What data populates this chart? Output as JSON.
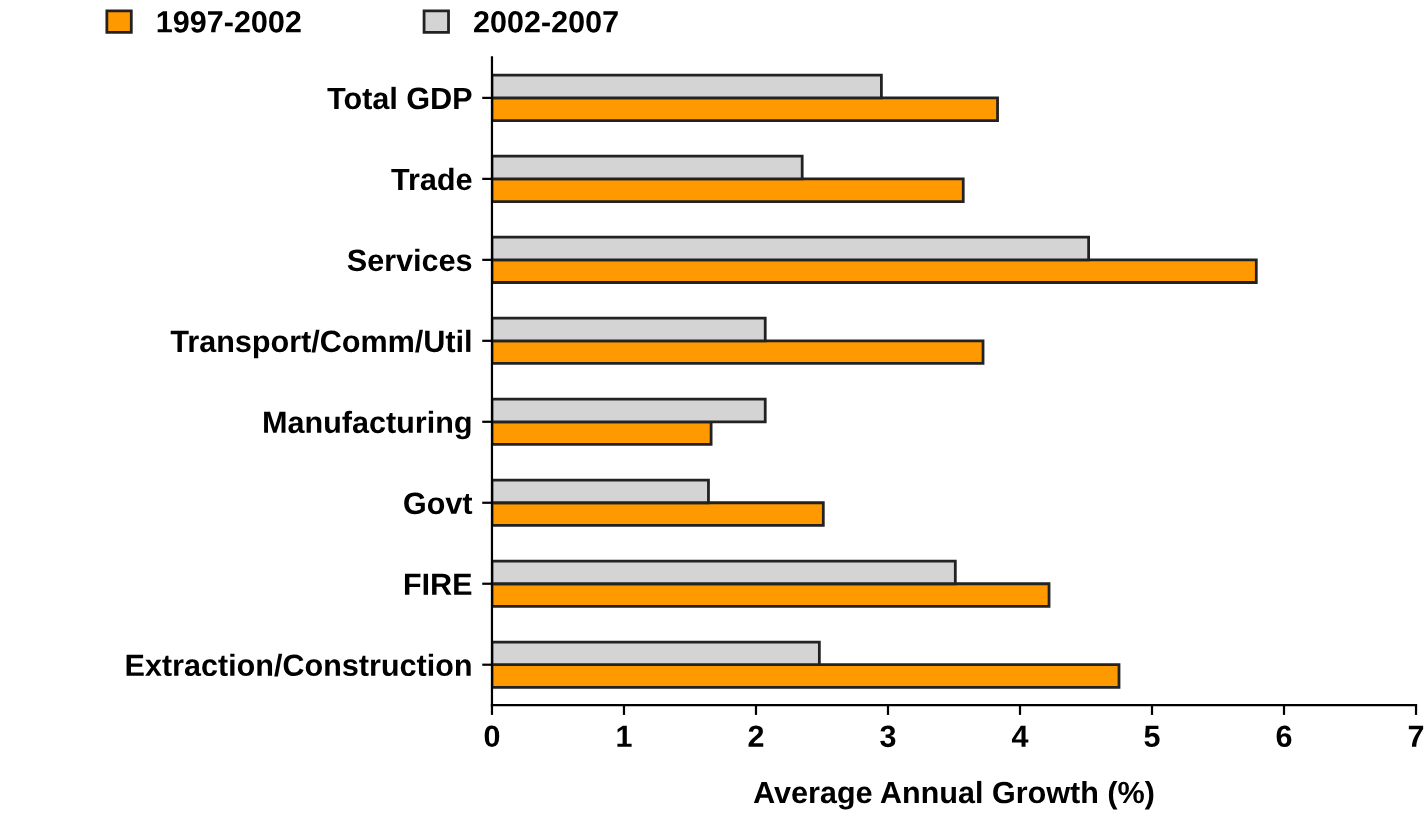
{
  "chart_data": {
    "type": "bar",
    "orientation": "horizontal",
    "xlabel": "Average Annual Growth (%)",
    "categories": [
      "Total GDP",
      "Trade",
      "Services",
      "Transport/Comm/Util",
      "Manufacturing",
      "Govt",
      "FIRE",
      "Extraction/Construction"
    ],
    "series": [
      {
        "name": "1997-2002",
        "color": "#ff9900",
        "values": [
          3.83,
          3.57,
          5.79,
          3.72,
          1.66,
          2.51,
          4.22,
          4.75
        ]
      },
      {
        "name": "2002-2007",
        "color": "#d4d4d4",
        "values": [
          2.95,
          2.35,
          4.52,
          2.07,
          2.07,
          1.64,
          3.51,
          2.48
        ]
      }
    ],
    "xlim": [
      0,
      7
    ],
    "xticks": [
      0,
      1,
      2,
      3,
      4,
      5,
      6,
      7
    ],
    "grid": false,
    "legend": "top"
  }
}
